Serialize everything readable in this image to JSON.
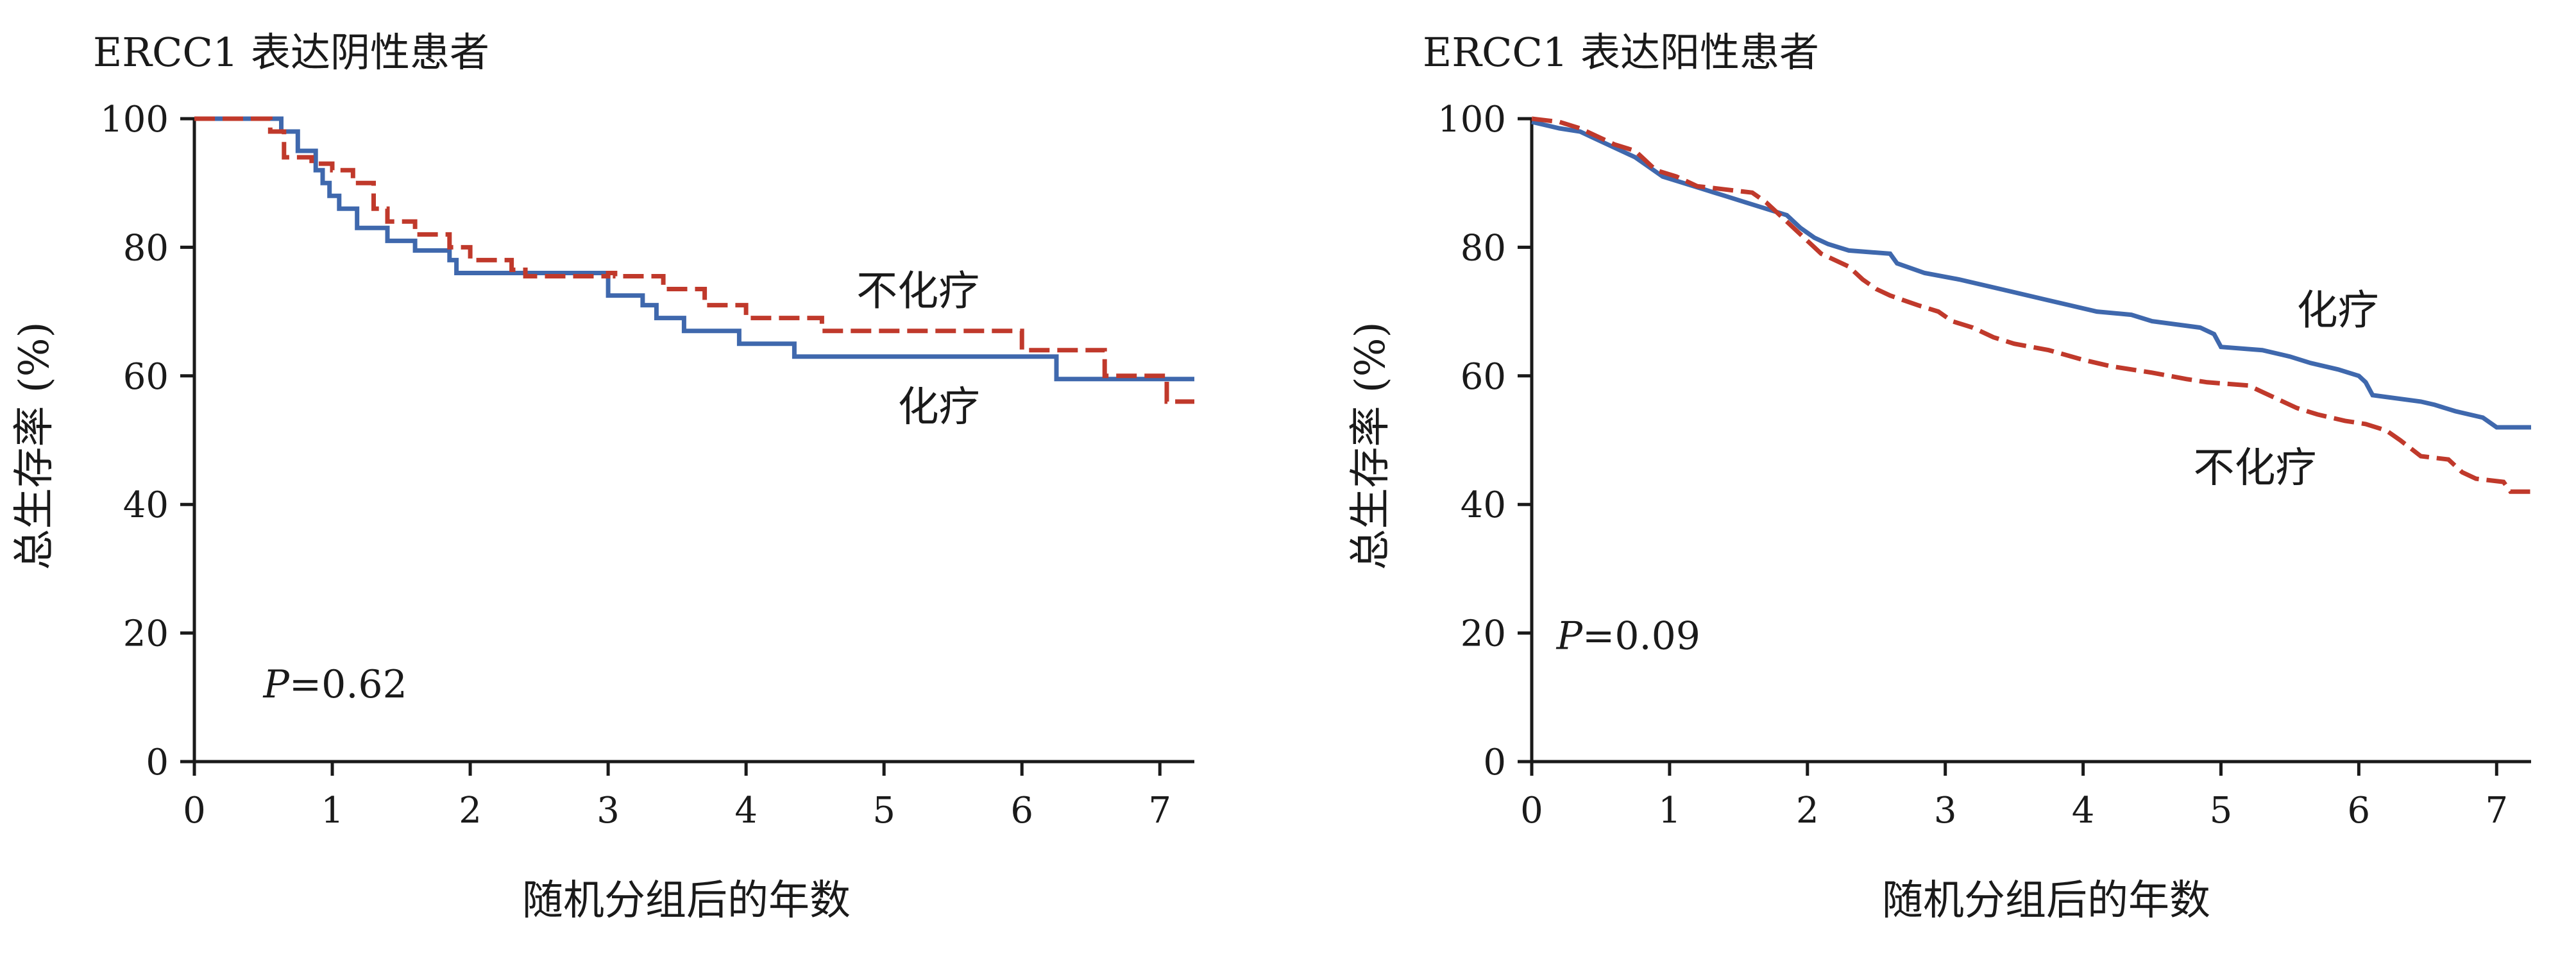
{
  "colors": {
    "chemo": "#3f68ad",
    "no_chemo": "#c0392b",
    "axis": "#1a1a1a"
  },
  "chart_data": [
    {
      "type": "line",
      "title": "ERCC1 表达阴性患者",
      "xlabel": "随机分组后的年数",
      "ylabel": "总生存率 (%)",
      "xlim": [
        0,
        7.25
      ],
      "ylim": [
        0,
        100
      ],
      "xticks": [
        "0",
        "1",
        "2",
        "3",
        "4",
        "5",
        "6",
        "7"
      ],
      "yticks": [
        "0",
        "20",
        "40",
        "60",
        "80",
        "100"
      ],
      "p_label": "P",
      "p_value": "=0.62",
      "grid": false,
      "series": [
        {
          "name": "化疗",
          "style": "solid",
          "color": "#3f68ad",
          "points": [
            [
              0,
              100
            ],
            [
              0.63,
              100
            ],
            [
              0.63,
              98
            ],
            [
              0.75,
              98
            ],
            [
              0.75,
              95
            ],
            [
              0.88,
              95
            ],
            [
              0.88,
              92
            ],
            [
              0.93,
              92
            ],
            [
              0.93,
              90
            ],
            [
              0.98,
              90
            ],
            [
              0.98,
              88
            ],
            [
              1.05,
              88
            ],
            [
              1.05,
              86
            ],
            [
              1.18,
              86
            ],
            [
              1.18,
              83
            ],
            [
              1.4,
              83
            ],
            [
              1.4,
              81
            ],
            [
              1.6,
              81
            ],
            [
              1.6,
              79.5
            ],
            [
              1.85,
              79.5
            ],
            [
              1.85,
              78
            ],
            [
              1.9,
              78
            ],
            [
              1.9,
              76
            ],
            [
              3.0,
              76
            ],
            [
              3.0,
              72.5
            ],
            [
              3.25,
              72.5
            ],
            [
              3.25,
              71
            ],
            [
              3.35,
              71
            ],
            [
              3.35,
              69
            ],
            [
              3.55,
              69
            ],
            [
              3.55,
              67
            ],
            [
              3.95,
              67
            ],
            [
              3.95,
              65
            ],
            [
              4.35,
              65
            ],
            [
              4.35,
              63
            ],
            [
              6.25,
              63
            ],
            [
              6.25,
              59.5
            ],
            [
              7.25,
              59.5
            ]
          ]
        },
        {
          "name": "不化疗",
          "style": "dashed",
          "color": "#c0392b",
          "points": [
            [
              0,
              100
            ],
            [
              0.55,
              100
            ],
            [
              0.55,
              98
            ],
            [
              0.65,
              98
            ],
            [
              0.65,
              94
            ],
            [
              0.85,
              94
            ],
            [
              0.85,
              93
            ],
            [
              1.0,
              93
            ],
            [
              1.0,
              92
            ],
            [
              1.15,
              92
            ],
            [
              1.15,
              90
            ],
            [
              1.3,
              90
            ],
            [
              1.3,
              86
            ],
            [
              1.4,
              86
            ],
            [
              1.4,
              84
            ],
            [
              1.6,
              84
            ],
            [
              1.6,
              82
            ],
            [
              1.85,
              82
            ],
            [
              1.85,
              80
            ],
            [
              2.0,
              80
            ],
            [
              2.0,
              78
            ],
            [
              2.3,
              78
            ],
            [
              2.3,
              76.5
            ],
            [
              2.4,
              76.5
            ],
            [
              2.4,
              75.5
            ],
            [
              3.0,
              75.5
            ],
            [
              3.0,
              76
            ],
            [
              3.05,
              76
            ],
            [
              3.05,
              75.5
            ],
            [
              3.4,
              75.5
            ],
            [
              3.4,
              73.5
            ],
            [
              3.7,
              73.5
            ],
            [
              3.7,
              71
            ],
            [
              4.0,
              71
            ],
            [
              4.0,
              69
            ],
            [
              4.55,
              69
            ],
            [
              4.55,
              67
            ],
            [
              6.0,
              67
            ],
            [
              6.0,
              64
            ],
            [
              6.6,
              64
            ],
            [
              6.6,
              60
            ],
            [
              7.05,
              60
            ],
            [
              7.05,
              56
            ],
            [
              7.25,
              56
            ]
          ]
        }
      ],
      "annotations": [
        {
          "series": "不化疗",
          "text": "不化疗",
          "x": 4.8,
          "y": 71
        },
        {
          "series": "化疗",
          "text": "化疗",
          "x": 5.1,
          "y": 53
        }
      ]
    },
    {
      "type": "line",
      "title": "ERCC1 表达阳性患者",
      "xlabel": "随机分组后的年数",
      "ylabel": "总生存率 (%)",
      "xlim": [
        0,
        7.25
      ],
      "ylim": [
        0,
        100
      ],
      "xticks": [
        "0",
        "1",
        "2",
        "3",
        "4",
        "5",
        "6",
        "7"
      ],
      "yticks": [
        "0",
        "20",
        "40",
        "60",
        "80",
        "100"
      ],
      "p_label": "P",
      "p_value": "=0.09",
      "grid": false,
      "series": [
        {
          "name": "化疗",
          "style": "solid",
          "color": "#3f68ad",
          "points": [
            [
              0,
              99.5
            ],
            [
              0.1,
              99
            ],
            [
              0.2,
              98.5
            ],
            [
              0.35,
              98
            ],
            [
              0.45,
              97
            ],
            [
              0.55,
              96
            ],
            [
              0.65,
              95
            ],
            [
              0.75,
              94
            ],
            [
              0.85,
              92.5
            ],
            [
              0.95,
              91
            ],
            [
              1.1,
              90
            ],
            [
              1.25,
              89
            ],
            [
              1.4,
              88
            ],
            [
              1.55,
              87
            ],
            [
              1.7,
              86
            ],
            [
              1.85,
              85
            ],
            [
              1.95,
              83
            ],
            [
              2.05,
              81.5
            ],
            [
              2.15,
              80.5
            ],
            [
              2.3,
              79.5
            ],
            [
              2.6,
              79
            ],
            [
              2.65,
              77.5
            ],
            [
              2.85,
              76
            ],
            [
              3.1,
              75
            ],
            [
              3.3,
              74
            ],
            [
              3.5,
              73
            ],
            [
              3.7,
              72
            ],
            [
              3.9,
              71
            ],
            [
              4.1,
              70
            ],
            [
              4.35,
              69.5
            ],
            [
              4.5,
              68.5
            ],
            [
              4.85,
              67.5
            ],
            [
              4.95,
              66.5
            ],
            [
              5.0,
              64.5
            ],
            [
              5.3,
              64
            ],
            [
              5.5,
              63
            ],
            [
              5.65,
              62
            ],
            [
              5.85,
              61
            ],
            [
              6.0,
              60
            ],
            [
              6.05,
              59
            ],
            [
              6.1,
              57
            ],
            [
              6.45,
              56
            ],
            [
              6.55,
              55.5
            ],
            [
              6.7,
              54.5
            ],
            [
              6.9,
              53.5
            ],
            [
              7.0,
              52
            ],
            [
              7.25,
              52
            ]
          ]
        },
        {
          "name": "不化疗",
          "style": "dashed",
          "color": "#c0392b",
          "points": [
            [
              0,
              100
            ],
            [
              0.2,
              99.5
            ],
            [
              0.35,
              98.5
            ],
            [
              0.5,
              97
            ],
            [
              0.6,
              96
            ],
            [
              0.75,
              95
            ],
            [
              0.8,
              94
            ],
            [
              0.9,
              92
            ],
            [
              1.05,
              91
            ],
            [
              1.2,
              89.5
            ],
            [
              1.4,
              89
            ],
            [
              1.6,
              88.5
            ],
            [
              1.7,
              87
            ],
            [
              1.8,
              85
            ],
            [
              1.9,
              83
            ],
            [
              2.0,
              81
            ],
            [
              2.1,
              79
            ],
            [
              2.3,
              77
            ],
            [
              2.4,
              75
            ],
            [
              2.5,
              73.5
            ],
            [
              2.6,
              72.5
            ],
            [
              2.8,
              71
            ],
            [
              2.95,
              70
            ],
            [
              3.05,
              68.5
            ],
            [
              3.2,
              67.5
            ],
            [
              3.35,
              66
            ],
            [
              3.5,
              65
            ],
            [
              3.75,
              64
            ],
            [
              4.0,
              62.5
            ],
            [
              4.2,
              61.5
            ],
            [
              4.5,
              60.5
            ],
            [
              4.75,
              59.5
            ],
            [
              4.9,
              59
            ],
            [
              5.2,
              58.5
            ],
            [
              5.3,
              57.5
            ],
            [
              5.45,
              56
            ],
            [
              5.55,
              55
            ],
            [
              5.7,
              54
            ],
            [
              5.9,
              53
            ],
            [
              6.05,
              52.5
            ],
            [
              6.2,
              51.5
            ],
            [
              6.3,
              50
            ],
            [
              6.45,
              47.5
            ],
            [
              6.65,
              47
            ],
            [
              6.75,
              45
            ],
            [
              6.85,
              44
            ],
            [
              7.05,
              43.5
            ],
            [
              7.1,
              42
            ],
            [
              7.25,
              42
            ]
          ]
        }
      ],
      "annotations": [
        {
          "series": "化疗",
          "text": "化疗",
          "x": 5.55,
          "y": 68
        },
        {
          "series": "不化疗",
          "text": "不化疗",
          "x": 4.8,
          "y": 43.5
        }
      ]
    }
  ]
}
